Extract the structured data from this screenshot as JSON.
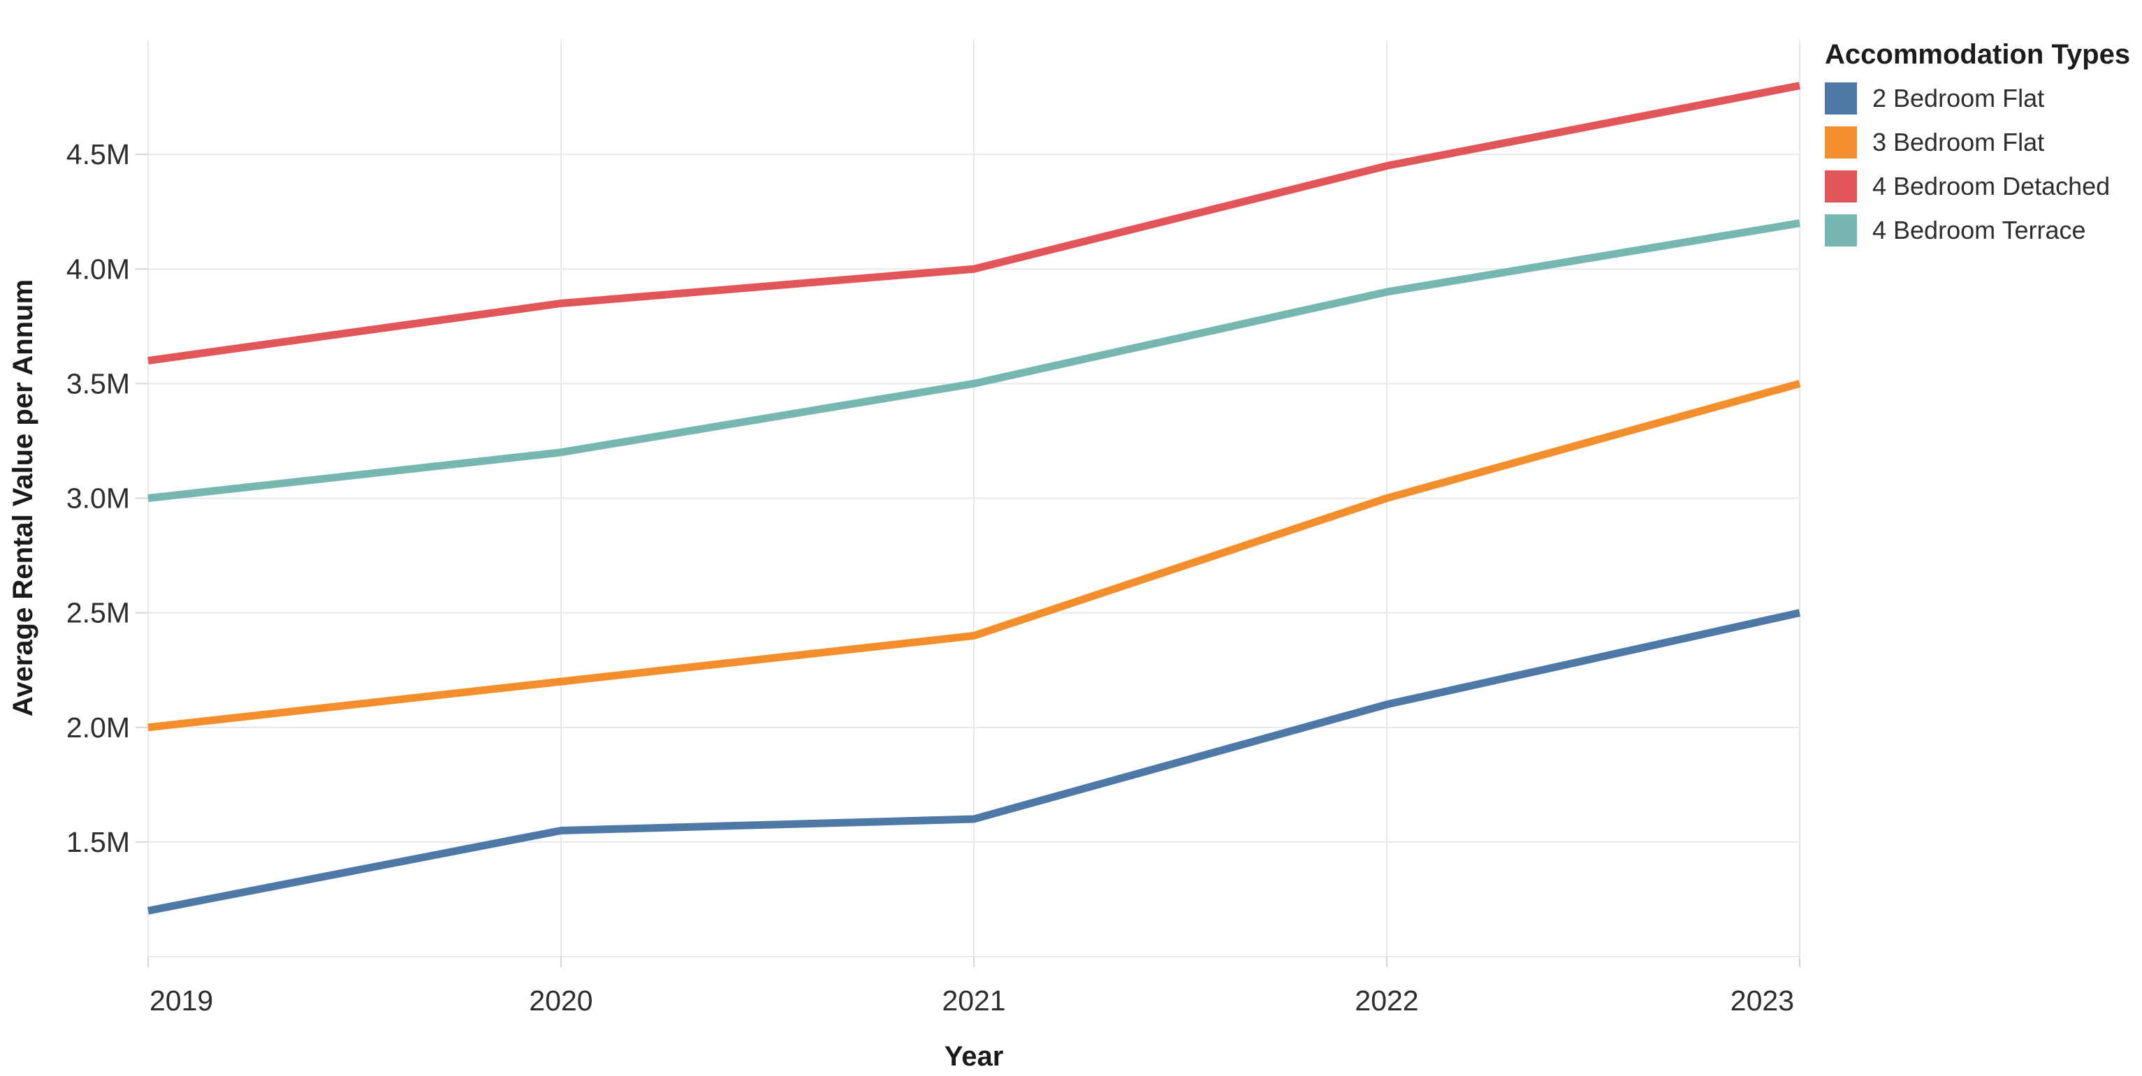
{
  "chart_data": {
    "type": "line",
    "title": "",
    "xlabel": "Year",
    "ylabel": "Average Rental Value per Annum",
    "x_categories": [
      "2019",
      "2020",
      "2021",
      "2022",
      "2023"
    ],
    "y_unit_suffix": "M",
    "ylim": [
      1.0,
      5.0
    ],
    "y_ticks": [
      {
        "value": 1.5,
        "label": "1.5M"
      },
      {
        "value": 2.0,
        "label": "2.0M"
      },
      {
        "value": 2.5,
        "label": "2.5M"
      },
      {
        "value": 3.0,
        "label": "3.0M"
      },
      {
        "value": 3.5,
        "label": "3.5M"
      },
      {
        "value": 4.0,
        "label": "4.0M"
      },
      {
        "value": 4.5,
        "label": "4.5M"
      }
    ],
    "y_gridlines": [
      1.0,
      1.5,
      2.0,
      2.5,
      3.0,
      3.5,
      4.0,
      4.5
    ],
    "grid": true,
    "legend": {
      "title": "Accommodation Types",
      "position": "outside-top-right"
    },
    "series": [
      {
        "name": "2 Bedroom Flat",
        "color": "#4E79A7",
        "values": [
          1.2,
          1.55,
          1.6,
          2.1,
          2.5
        ]
      },
      {
        "name": "3 Bedroom Flat",
        "color": "#F28E2B",
        "values": [
          2.0,
          2.2,
          2.4,
          3.0,
          3.5
        ]
      },
      {
        "name": "4 Bedroom Detached",
        "color": "#E15759",
        "values": [
          3.6,
          3.85,
          4.0,
          4.45,
          4.8
        ]
      },
      {
        "name": "4 Bedroom Terrace",
        "color": "#76B7B2",
        "values": [
          3.0,
          3.2,
          3.5,
          3.9,
          4.2
        ]
      }
    ]
  },
  "styles": {
    "grid_color": "#e9e9e9",
    "tick_mark_color": "#d6d6d6",
    "tick_label_color": "#2d2d2d",
    "axis_title_color": "#1a1a1a",
    "background_color": "#ffffff"
  }
}
